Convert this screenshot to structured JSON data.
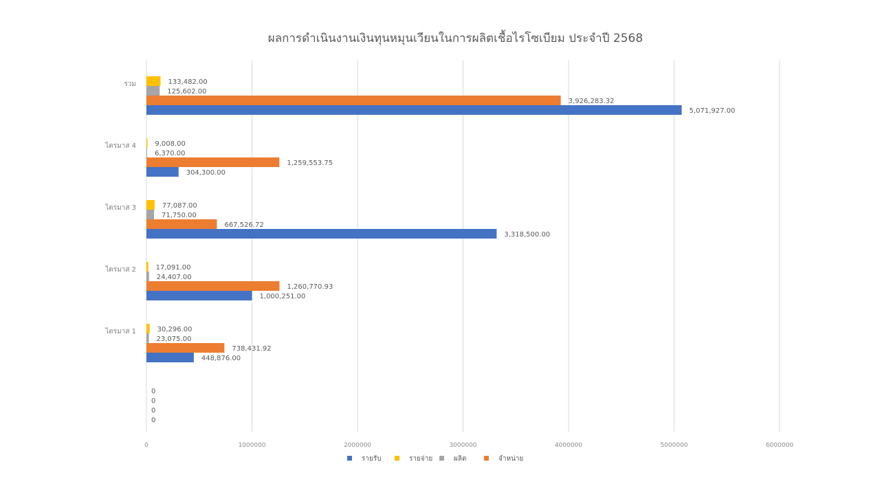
{
  "chart_data": {
    "type": "bar",
    "orientation": "horizontal",
    "title": "ผลการดำเนินงานเงินทุนหมุนเวียนในการผลิตเชื้อไรโซเบียม ประจำปี 2568",
    "categories": [
      "",
      "ไตรมาส 1",
      "ไตรมาส 2",
      "ไตรมาส 3",
      "ไตรมาส 4",
      "รวม"
    ],
    "series": [
      {
        "name": "รายรับ",
        "color": "#4472C4",
        "values": [
          0,
          448876.0,
          1000251.0,
          3318500.0,
          304300.0,
          5071927.0
        ],
        "labels": [
          "0",
          "448,876.00",
          "1,000,251.00",
          "3,318,500.00",
          "304,300.00",
          "5,071,927.00"
        ]
      },
      {
        "name": "จำหน่าย",
        "color": "#ED7D31",
        "values": [
          0,
          738431.92,
          1260770.93,
          667526.72,
          1259553.75,
          3926283.32
        ],
        "labels": [
          "0",
          "738,431.92",
          "1,260,770.93",
          "667,526.72",
          "1,259,553.75",
          "3,926,283.32"
        ]
      },
      {
        "name": "ผลิต",
        "color": "#A5A5A5",
        "values": [
          0,
          23075.0,
          24407.0,
          71750.0,
          6370.0,
          125602.0
        ],
        "labels": [
          "0",
          "23,075.00",
          "24,407.00",
          "71,750.00",
          "6,370.00",
          "125,602.00"
        ]
      },
      {
        "name": "รายจ่าย",
        "color": "#FFC000",
        "values": [
          0,
          30296.0,
          17091.0,
          77087.0,
          9008.0,
          133482.0
        ],
        "labels": [
          "0",
          "30,296.00",
          "17,091.00",
          "77,087.00",
          "9,008.00",
          "133,482.00"
        ]
      }
    ],
    "xlim": [
      0,
      6000000
    ],
    "x_ticks": [
      "0",
      "1000000",
      "2000000",
      "3000000",
      "4000000",
      "5000000",
      "6000000"
    ],
    "grid": true,
    "legend": {
      "position": "bottom",
      "order": [
        "รายรับ",
        "รายจ่าย",
        "ผลิต",
        "จำหน่าย"
      ]
    },
    "data_labels": true
  }
}
